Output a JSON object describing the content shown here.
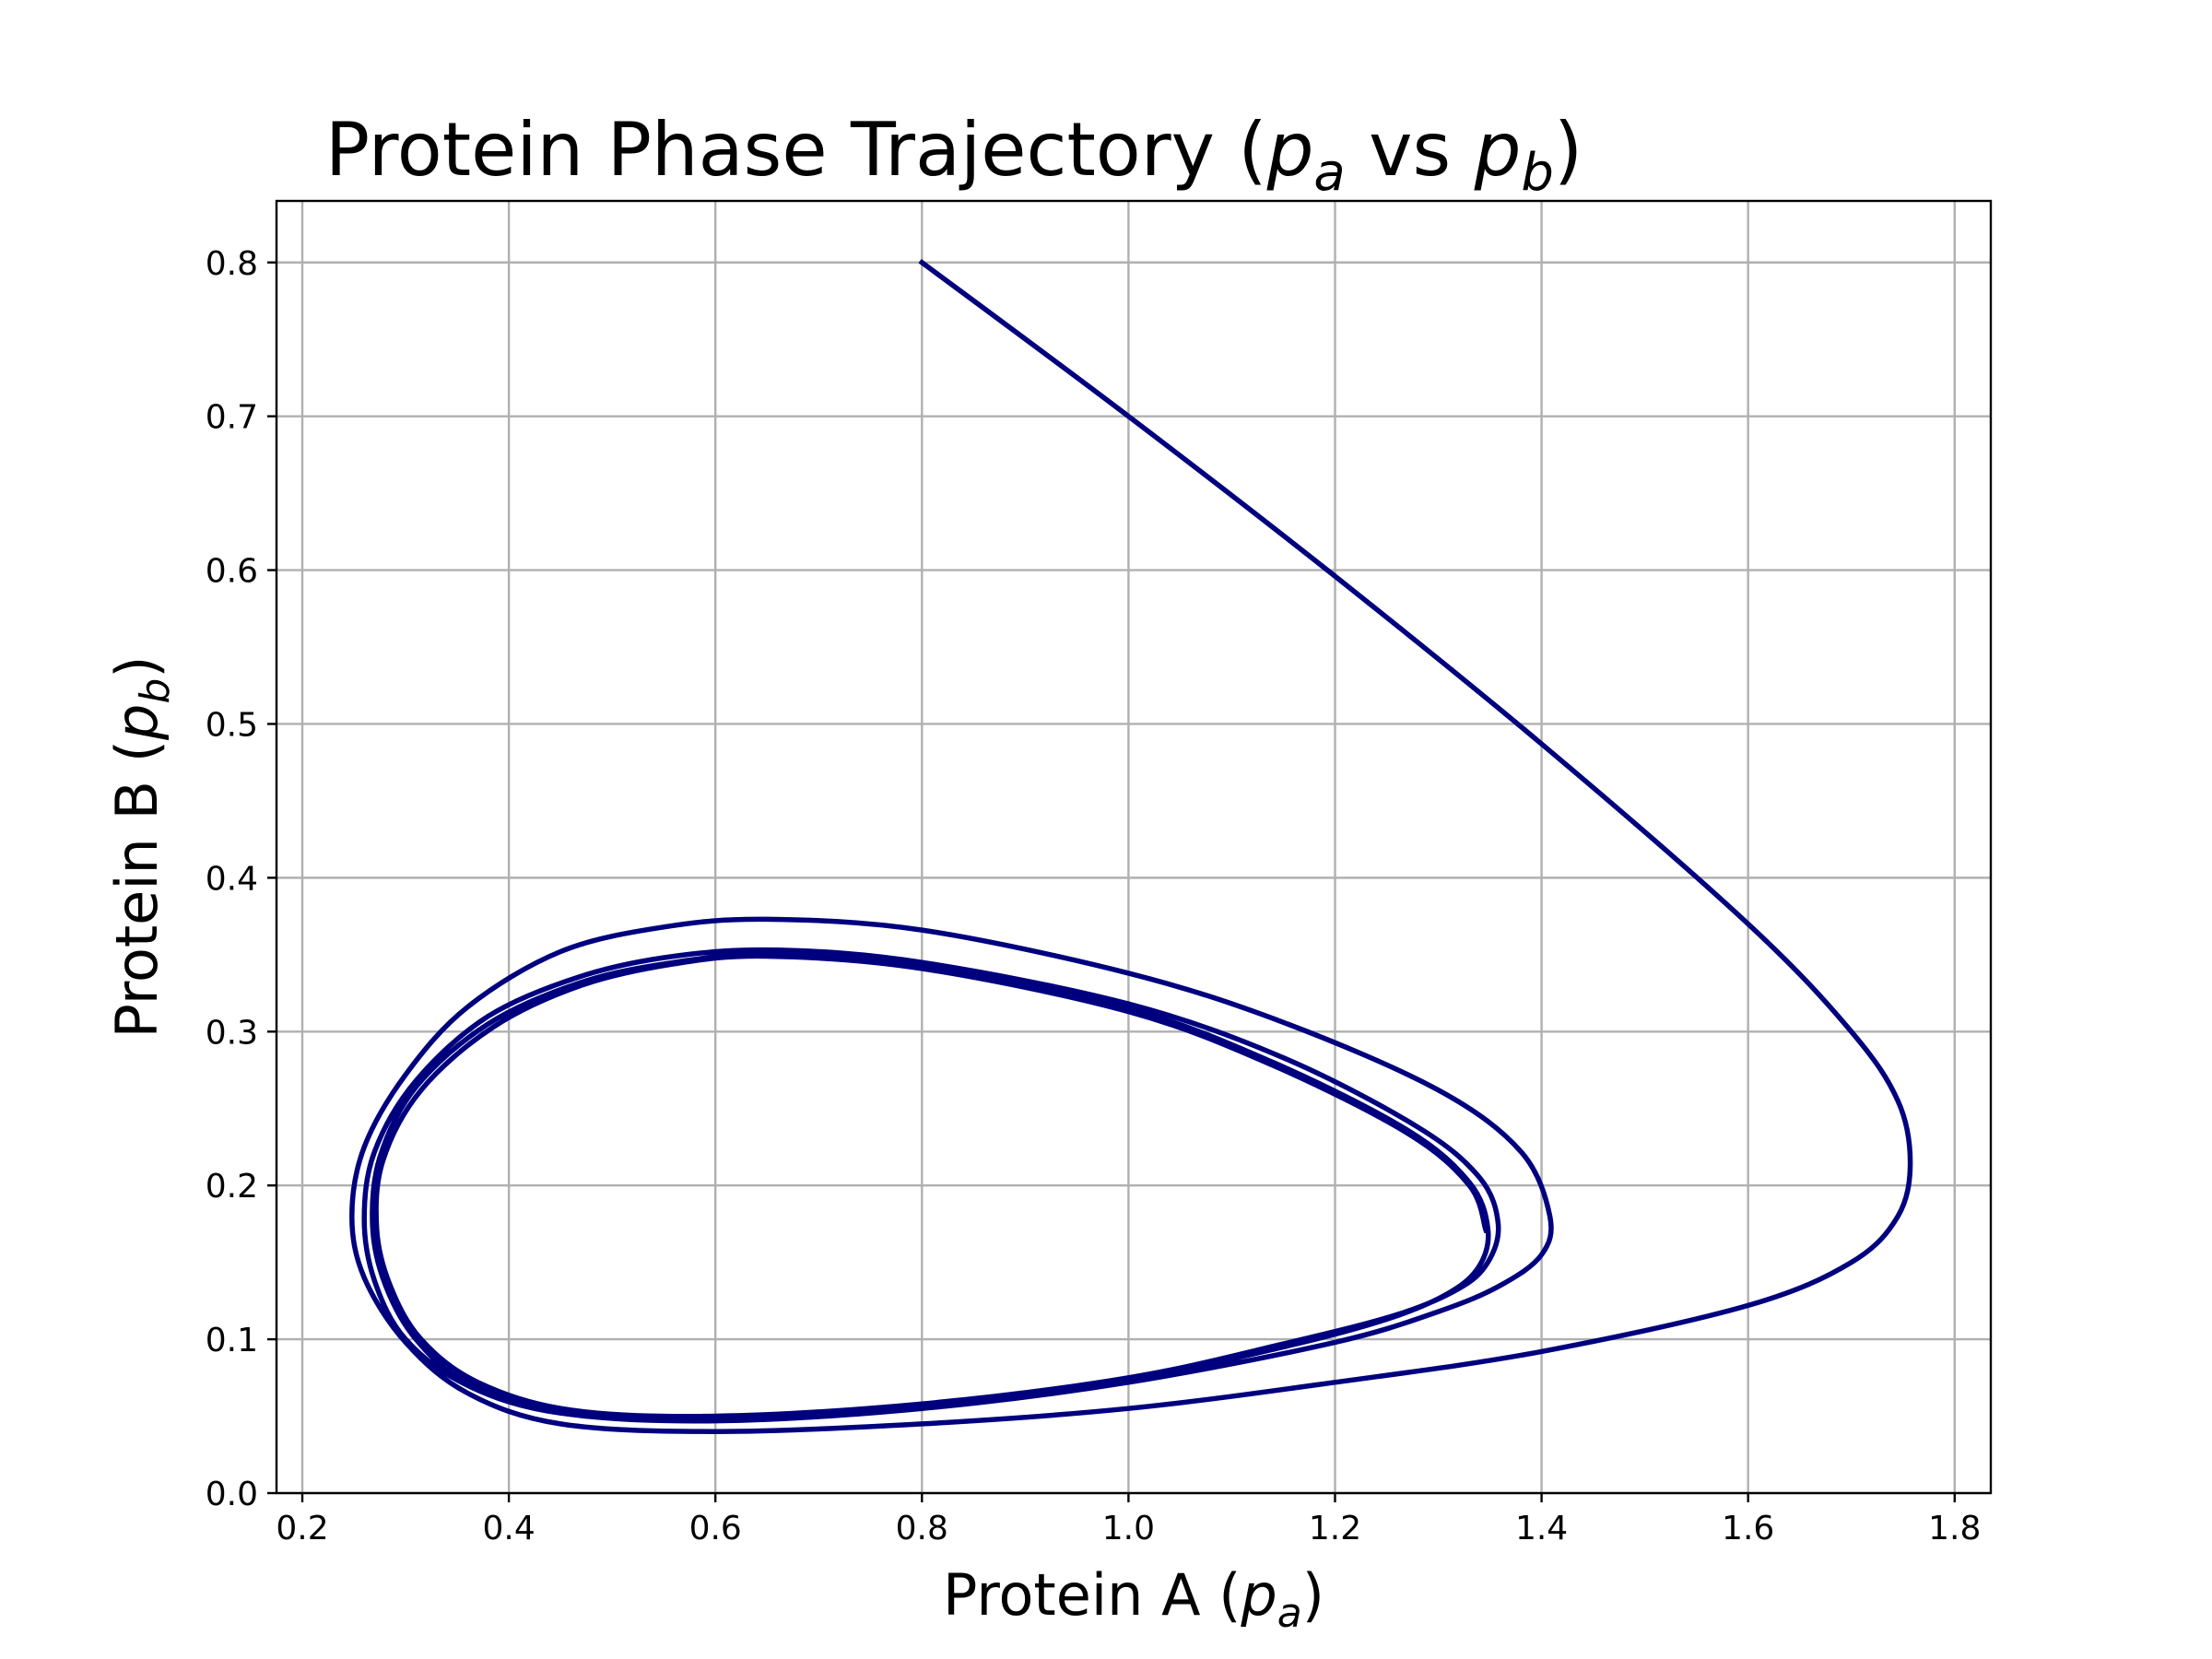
{
  "chart_data": {
    "type": "line",
    "title_parts": {
      "prefix": "Protein Phase Trajectory (",
      "var1": "p",
      "var1_sub": "a",
      "middle": " vs ",
      "var2": "p",
      "var2_sub": "b",
      "suffix": ")"
    },
    "xlabel_parts": {
      "prefix": "Protein A (",
      "var": "p",
      "sub": "a",
      "suffix": ")"
    },
    "ylabel_parts": {
      "prefix": "Protein B (",
      "var": "p",
      "sub": "b",
      "suffix": ")"
    },
    "xlim": [
      0.175,
      1.835
    ],
    "ylim": [
      0.0,
      0.84
    ],
    "xticks": [
      0.2,
      0.4,
      0.6,
      0.8,
      1.0,
      1.2,
      1.4,
      1.6,
      1.8
    ],
    "xtick_labels": [
      "0.2",
      "0.4",
      "0.6",
      "0.8",
      "1.0",
      "1.2",
      "1.4",
      "1.6",
      "1.8"
    ],
    "yticks": [
      0.0,
      0.1,
      0.2,
      0.3,
      0.4,
      0.5,
      0.6,
      0.7,
      0.8
    ],
    "ytick_labels": [
      "0.0",
      "0.1",
      "0.2",
      "0.3",
      "0.4",
      "0.5",
      "0.6",
      "0.7",
      "0.8"
    ],
    "grid": true,
    "series": [
      {
        "color": "#00007f",
        "x": [
          0.8,
          1.0,
          1.2,
          1.4,
          1.6,
          1.7,
          1.745,
          1.757,
          1.745,
          1.7,
          1.6,
          1.4,
          1.2,
          1.0,
          0.8,
          0.6,
          0.45,
          0.36,
          0.3,
          0.26,
          0.248,
          0.26,
          0.3,
          0.36,
          0.45,
          0.55,
          0.65,
          0.8,
          1.0,
          1.15,
          1.3,
          1.38,
          1.408,
          1.4,
          1.36,
          1.3,
          1.2,
          1.0,
          0.8,
          0.6,
          0.45,
          0.36,
          0.3,
          0.27,
          0.26,
          0.27,
          0.31,
          0.38,
          0.47,
          0.56,
          0.66,
          0.8,
          1.0,
          1.15,
          1.28,
          1.34,
          1.358,
          1.348,
          1.32,
          1.26,
          1.15,
          1.0,
          0.8,
          0.6,
          0.45,
          0.36,
          0.31,
          0.28,
          0.268,
          0.275,
          0.31,
          0.38,
          0.47,
          0.56,
          0.65,
          0.8,
          1.0,
          1.14,
          1.27,
          1.33,
          1.348,
          1.34,
          1.31,
          1.25,
          1.15,
          1.0,
          0.8,
          0.6,
          0.46,
          0.37,
          0.315,
          0.285,
          0.272,
          0.278,
          0.315,
          0.385,
          0.47,
          0.56,
          0.65,
          0.8,
          1.0,
          1.14,
          1.27,
          1.33,
          1.346
        ],
        "y": [
          0.8,
          0.7,
          0.596,
          0.487,
          0.37,
          0.3,
          0.255,
          0.215,
          0.18,
          0.15,
          0.122,
          0.092,
          0.072,
          0.055,
          0.045,
          0.04,
          0.045,
          0.065,
          0.098,
          0.14,
          0.18,
          0.225,
          0.272,
          0.316,
          0.352,
          0.368,
          0.373,
          0.366,
          0.338,
          0.306,
          0.262,
          0.222,
          0.18,
          0.155,
          0.135,
          0.118,
          0.098,
          0.072,
          0.055,
          0.047,
          0.052,
          0.07,
          0.1,
          0.138,
          0.178,
          0.222,
          0.268,
          0.31,
          0.336,
          0.349,
          0.353,
          0.345,
          0.318,
          0.283,
          0.238,
          0.205,
          0.175,
          0.15,
          0.133,
          0.116,
          0.097,
          0.075,
          0.058,
          0.05,
          0.054,
          0.072,
          0.1,
          0.136,
          0.174,
          0.218,
          0.264,
          0.305,
          0.332,
          0.345,
          0.35,
          0.342,
          0.315,
          0.28,
          0.236,
          0.202,
          0.172,
          0.148,
          0.13,
          0.113,
          0.095,
          0.074,
          0.057,
          0.05,
          0.054,
          0.072,
          0.1,
          0.135,
          0.172,
          0.216,
          0.262,
          0.303,
          0.33,
          0.344,
          0.349,
          0.341,
          0.313,
          0.278,
          0.234,
          0.2,
          0.171
        ]
      }
    ]
  }
}
